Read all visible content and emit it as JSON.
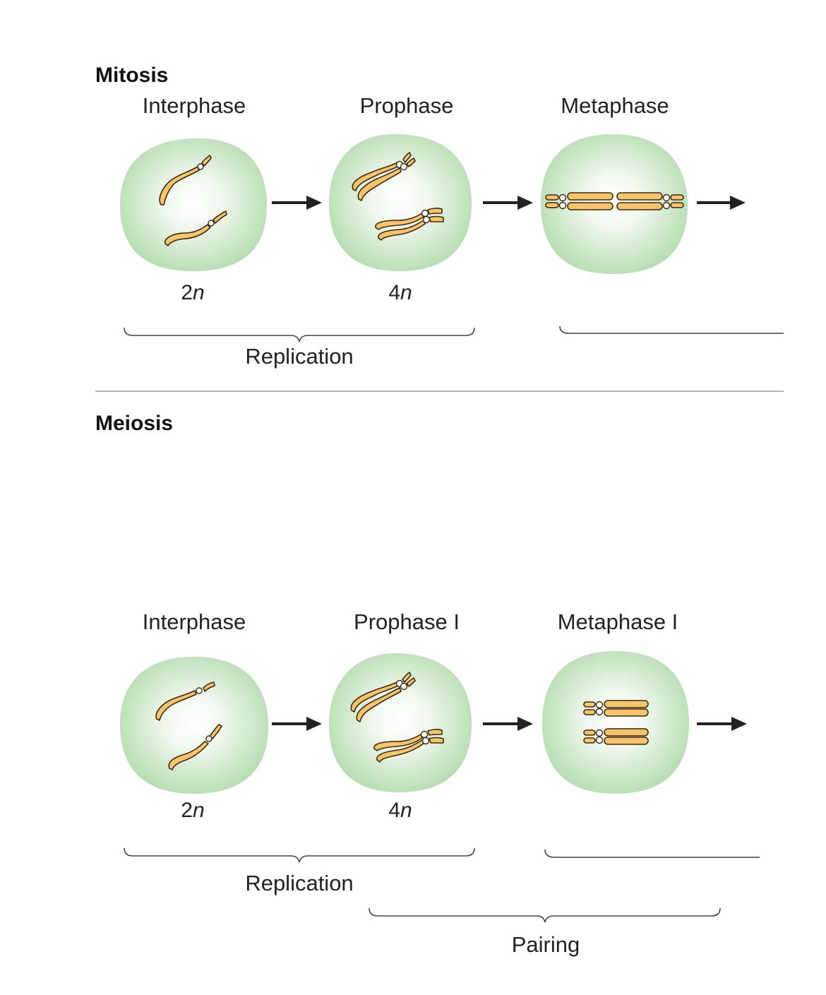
{
  "mitosis": {
    "title": "Mitosis",
    "stages": [
      "Interphase",
      "Prophase",
      "Metaphase"
    ],
    "ploidy": [
      {
        "num": "2",
        "var": "n"
      },
      {
        "num": "4",
        "var": "n"
      }
    ],
    "brace_label": "Replication"
  },
  "meiosis": {
    "title": "Meiosis",
    "stages": [
      "Interphase",
      "Prophase I",
      "Metaphase I"
    ],
    "ploidy": [
      {
        "num": "2",
        "var": "n"
      },
      {
        "num": "4",
        "var": "n"
      }
    ],
    "brace_labels": [
      "Replication",
      "Pairing"
    ]
  },
  "colors": {
    "cell_center": "#ffffff",
    "cell_edge": "#b5dcb0",
    "chromosome": "#f7c46c",
    "outline": "#3a2a10"
  }
}
